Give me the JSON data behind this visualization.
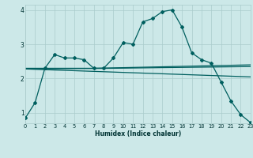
{
  "xlabel": "Humidex (Indice chaleur)",
  "bg_color": "#cce8e8",
  "grid_color": "#aacccc",
  "line_color": "#005f5f",
  "line1_x": [
    0,
    1,
    2,
    3,
    4,
    5,
    6,
    7,
    8,
    9,
    10,
    11,
    12,
    13,
    14,
    15,
    16,
    17,
    18,
    19,
    20,
    21,
    22,
    23
  ],
  "line1_y": [
    0.85,
    1.3,
    2.3,
    2.7,
    2.6,
    2.6,
    2.55,
    2.3,
    2.3,
    2.6,
    3.05,
    3.0,
    3.65,
    3.75,
    3.95,
    4.0,
    3.5,
    2.75,
    2.55,
    2.45,
    1.9,
    1.35,
    0.95,
    0.72
  ],
  "line2_x": [
    0,
    7,
    23
  ],
  "line2_y": [
    2.3,
    2.3,
    2.4
  ],
  "line3_x": [
    0,
    23
  ],
  "line3_y": [
    2.28,
    2.05
  ],
  "line4_x": [
    0,
    9,
    14,
    23
  ],
  "line4_y": [
    2.28,
    2.3,
    2.32,
    2.35
  ],
  "xlim": [
    0,
    23
  ],
  "ylim": [
    0.7,
    4.15
  ],
  "yticks": [
    1,
    2,
    3,
    4
  ],
  "xticks": [
    0,
    1,
    2,
    3,
    4,
    5,
    6,
    7,
    8,
    9,
    10,
    11,
    12,
    13,
    14,
    15,
    16,
    17,
    18,
    19,
    20,
    21,
    22,
    23
  ]
}
